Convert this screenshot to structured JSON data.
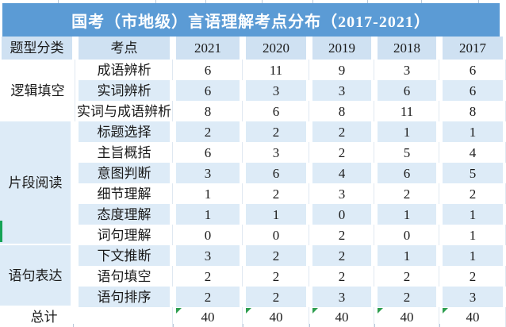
{
  "title": "国考（市地级）言语理解考点分布（2017-2021）",
  "table": {
    "columns": [
      "题型分类",
      "考点",
      "2021",
      "2020",
      "2019",
      "2018",
      "2017"
    ],
    "groups": [
      {
        "category": "逻辑填空",
        "rows": [
          {
            "name": "成语辨析",
            "values": [
              6,
              11,
              9,
              3,
              6
            ]
          },
          {
            "name": "实词辨析",
            "values": [
              6,
              3,
              3,
              6,
              6
            ]
          },
          {
            "name": "实词与成语辨析",
            "values": [
              8,
              6,
              8,
              11,
              8
            ]
          }
        ]
      },
      {
        "category": "片段阅读",
        "rows": [
          {
            "name": "标题选择",
            "values": [
              2,
              2,
              2,
              1,
              1
            ]
          },
          {
            "name": "主旨概括",
            "values": [
              6,
              3,
              2,
              5,
              4
            ]
          },
          {
            "name": "意图判断",
            "values": [
              3,
              6,
              4,
              6,
              5
            ]
          },
          {
            "name": "细节理解",
            "values": [
              1,
              2,
              3,
              2,
              2
            ]
          },
          {
            "name": "态度理解",
            "values": [
              1,
              1,
              0,
              1,
              1
            ]
          },
          {
            "name": "词句理解",
            "values": [
              0,
              0,
              2,
              0,
              1
            ]
          }
        ]
      },
      {
        "category": "语句表达",
        "rows": [
          {
            "name": "下文推断",
            "values": [
              3,
              2,
              2,
              1,
              1
            ]
          },
          {
            "name": "语句填空",
            "values": [
              2,
              2,
              2,
              2,
              2
            ]
          },
          {
            "name": "语句排序",
            "values": [
              2,
              2,
              3,
              2,
              3
            ]
          }
        ]
      }
    ],
    "total": {
      "label": "总计",
      "values": [
        40,
        40,
        40,
        40,
        40
      ]
    }
  },
  "colors": {
    "title_bar": "#5b9bd5",
    "band_blue": "#ddebf7",
    "header_blue": "#cfe1f2",
    "marker_green": "#15a356",
    "triangle_green": "#2e9e4f"
  },
  "icons": {
    "error_triangle": "green-corner-triangle",
    "edge_marker": "green-edge-bar"
  }
}
